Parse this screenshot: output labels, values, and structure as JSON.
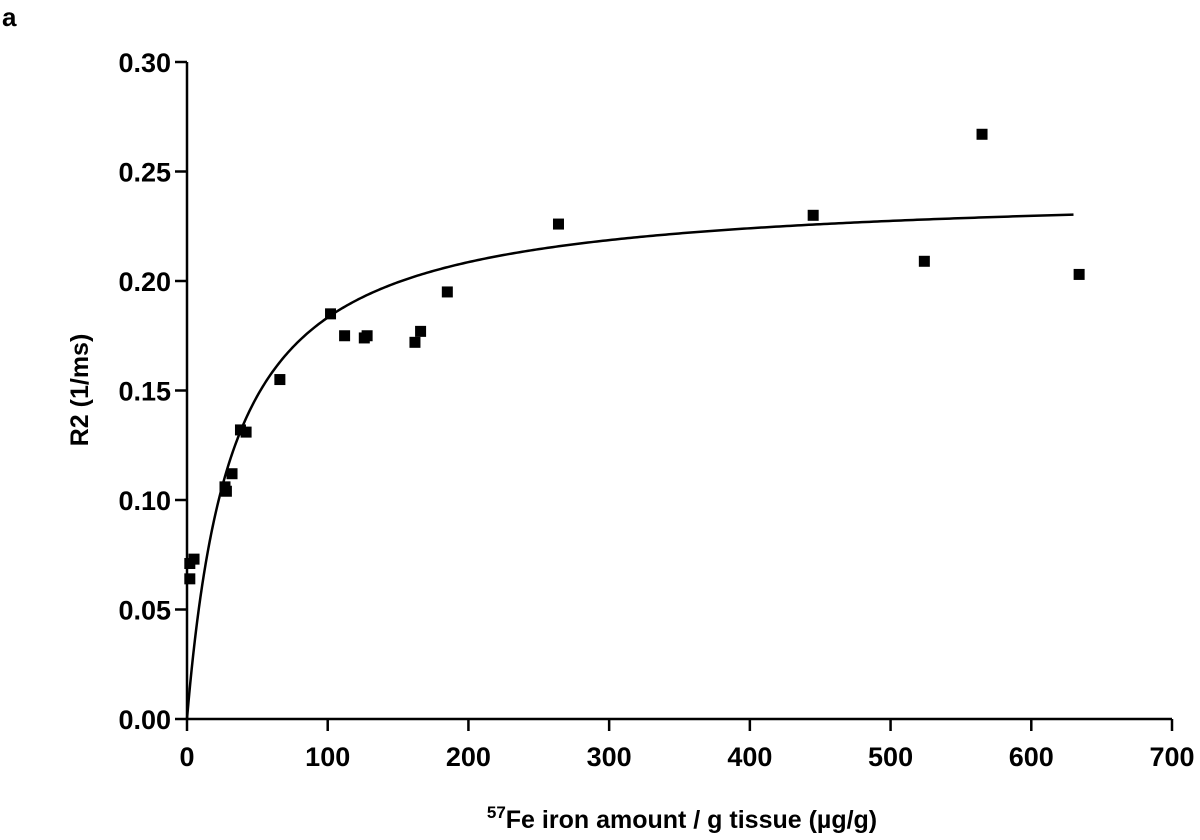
{
  "panel_label": "a",
  "chart_data": {
    "type": "scatter",
    "title": "",
    "xlabel_superscript": "57",
    "xlabel": "Fe iron amount / g tissue (µg/g)",
    "ylabel": "R2 (1/ms)",
    "xlim": [
      0,
      700
    ],
    "ylim": [
      0,
      0.3
    ],
    "x_ticks": [
      0,
      100,
      200,
      300,
      400,
      500,
      600,
      700
    ],
    "x_tick_labels": [
      "0",
      "100",
      "200",
      "300",
      "400",
      "500",
      "600",
      "700"
    ],
    "y_ticks": [
      0,
      0.05,
      0.1,
      0.15,
      0.2,
      0.25,
      0.3
    ],
    "y_tick_labels": [
      "0.00",
      "0.05",
      "0.10",
      "0.15",
      "0.20",
      "0.25",
      "0.30"
    ],
    "grid": false,
    "marker": "square",
    "marker_color": "#000000",
    "points": [
      {
        "x": 2,
        "y": 0.064
      },
      {
        "x": 2,
        "y": 0.071
      },
      {
        "x": 5,
        "y": 0.073
      },
      {
        "x": 27,
        "y": 0.106
      },
      {
        "x": 28,
        "y": 0.104
      },
      {
        "x": 32,
        "y": 0.112
      },
      {
        "x": 38,
        "y": 0.132
      },
      {
        "x": 42,
        "y": 0.131
      },
      {
        "x": 66,
        "y": 0.155
      },
      {
        "x": 102,
        "y": 0.185
      },
      {
        "x": 112,
        "y": 0.175
      },
      {
        "x": 126,
        "y": 0.174
      },
      {
        "x": 128,
        "y": 0.175
      },
      {
        "x": 162,
        "y": 0.172
      },
      {
        "x": 166,
        "y": 0.177
      },
      {
        "x": 185,
        "y": 0.195
      },
      {
        "x": 264,
        "y": 0.226
      },
      {
        "x": 445,
        "y": 0.23
      },
      {
        "x": 524,
        "y": 0.209
      },
      {
        "x": 565,
        "y": 0.267
      },
      {
        "x": 634,
        "y": 0.203
      }
    ],
    "fit_curve": {
      "type": "saturation",
      "ymax": 0.242,
      "k": 32,
      "x_range": [
        0,
        630
      ],
      "color": "#000000"
    }
  }
}
